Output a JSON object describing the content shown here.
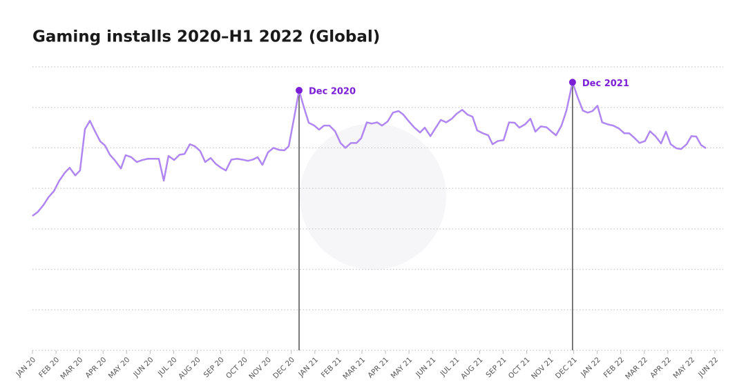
{
  "chart_data": {
    "type": "line",
    "title": "Gaming installs 2020–H1 2022 (Global)",
    "x": [
      0.0,
      0.23,
      0.47,
      0.68,
      0.91,
      1.14,
      1.38,
      1.58,
      1.82,
      2.02,
      2.23,
      2.44,
      2.64,
      2.88,
      3.08,
      3.29,
      3.49,
      3.76,
      3.96,
      4.2,
      4.43,
      4.67,
      4.9,
      5.14,
      5.37,
      5.58,
      5.78,
      6.02,
      6.25,
      6.46,
      6.69,
      6.9,
      7.13,
      7.34,
      7.57,
      7.78,
      8.01,
      8.22,
      8.45,
      8.69,
      8.92,
      9.16,
      9.36,
      9.57,
      9.77,
      10.01,
      10.24,
      10.48,
      10.71,
      10.89,
      11.12,
      11.33,
      11.54,
      11.74,
      11.98,
      12.18,
      12.39,
      12.62,
      12.86,
      13.09,
      13.3,
      13.53,
      13.77,
      13.97,
      14.21,
      14.41,
      14.65,
      14.85,
      15.09,
      15.32,
      15.56,
      15.76,
      16.0,
      16.23,
      16.47,
      16.67,
      16.91,
      17.14,
      17.35,
      17.58,
      17.82,
      18.02,
      18.26,
      18.49,
      18.7,
      18.9,
      19.14,
      19.37,
      19.55,
      19.78,
      20.02,
      20.25,
      20.49,
      20.69,
      20.93,
      21.16,
      21.37,
      21.6,
      21.84,
      22.04,
      22.25,
      22.48,
      22.69,
      22.95,
      23.16,
      23.39,
      23.6,
      23.8,
      24.01,
      24.21,
      24.45,
      24.68,
      24.92,
      25.15,
      25.36,
      25.59,
      25.8,
      26.03,
      26.24,
      26.47,
      26.71,
      26.92,
      27.12,
      27.36,
      27.56,
      27.8,
      28.0,
      28.21,
      28.41,
      28.62
    ],
    "series": [
      {
        "color": "#b086f2",
        "values": [
          3.32,
          3.42,
          3.59,
          3.78,
          3.93,
          4.19,
          4.39,
          4.51,
          4.32,
          4.44,
          5.46,
          5.67,
          5.43,
          5.16,
          5.06,
          4.83,
          4.7,
          4.49,
          4.82,
          4.77,
          4.65,
          4.7,
          4.73,
          4.73,
          4.73,
          4.19,
          4.8,
          4.7,
          4.83,
          4.85,
          5.09,
          5.04,
          4.92,
          4.65,
          4.75,
          4.61,
          4.51,
          4.44,
          4.71,
          4.73,
          4.71,
          4.68,
          4.71,
          4.77,
          4.58,
          4.89,
          5.0,
          4.95,
          4.94,
          5.04,
          5.75,
          6.42,
          5.99,
          5.62,
          5.55,
          5.45,
          5.55,
          5.55,
          5.41,
          5.12,
          5.0,
          5.12,
          5.12,
          5.24,
          5.63,
          5.6,
          5.63,
          5.55,
          5.65,
          5.87,
          5.91,
          5.82,
          5.65,
          5.5,
          5.38,
          5.5,
          5.29,
          5.5,
          5.69,
          5.63,
          5.72,
          5.84,
          5.94,
          5.82,
          5.77,
          5.43,
          5.36,
          5.31,
          5.09,
          5.17,
          5.19,
          5.63,
          5.62,
          5.5,
          5.58,
          5.72,
          5.4,
          5.53,
          5.51,
          5.41,
          5.31,
          5.55,
          5.92,
          6.62,
          6.26,
          5.92,
          5.87,
          5.91,
          6.04,
          5.63,
          5.58,
          5.55,
          5.48,
          5.36,
          5.36,
          5.24,
          5.12,
          5.17,
          5.41,
          5.29,
          5.11,
          5.4,
          5.09,
          4.99,
          4.97,
          5.09,
          5.29,
          5.28,
          5.07,
          4.99
        ]
      }
    ],
    "annotations": [
      {
        "text": "Dec 2020",
        "x": 11.33,
        "y": 6.42,
        "color": "#7b1fd6"
      },
      {
        "text": "Dec 2021",
        "x": 22.95,
        "y": 6.62,
        "color": "#7b1fd6"
      }
    ],
    "xlim": [
      0,
      29
    ],
    "xticks": [
      {
        "value": 0,
        "label": "JAN 20"
      },
      {
        "value": 1,
        "label": "FEB 20"
      },
      {
        "value": 2,
        "label": "MAR 20"
      },
      {
        "value": 3,
        "label": "APR 20"
      },
      {
        "value": 4,
        "label": "MAY 20"
      },
      {
        "value": 5,
        "label": "JUN 20"
      },
      {
        "value": 6,
        "label": "JUL 20"
      },
      {
        "value": 7,
        "label": "AUG 20"
      },
      {
        "value": 8,
        "label": "SEP 20"
      },
      {
        "value": 9,
        "label": "OCT 20"
      },
      {
        "value": 10,
        "label": "NOV 20"
      },
      {
        "value": 11,
        "label": "DEC 20"
      },
      {
        "value": 12,
        "label": "JAN 21"
      },
      {
        "value": 13,
        "label": "FEB 21"
      },
      {
        "value": 14,
        "label": "MAR 21"
      },
      {
        "value": 15,
        "label": "APR 21"
      },
      {
        "value": 16,
        "label": "MAY 21"
      },
      {
        "value": 17,
        "label": "JUN 21"
      },
      {
        "value": 18,
        "label": "JUL 21"
      },
      {
        "value": 19,
        "label": "AUG 21"
      },
      {
        "value": 20,
        "label": "SEP 21"
      },
      {
        "value": 21,
        "label": "OCT 21"
      },
      {
        "value": 22,
        "label": "NOV 21"
      },
      {
        "value": 23,
        "label": "DEC 21"
      },
      {
        "value": 24,
        "label": "JAN 22"
      },
      {
        "value": 25,
        "label": "FEB 22"
      },
      {
        "value": 26,
        "label": "MAR 22"
      },
      {
        "value": 27,
        "label": "APR 22"
      },
      {
        "value": 28,
        "label": "MAY 22"
      },
      {
        "value": 29,
        "label": "JUN 22"
      }
    ],
    "ylim": [
      0,
      7
    ],
    "yticks": [
      0,
      1,
      2,
      3,
      4,
      5,
      6,
      7
    ],
    "show_ytick_labels": false,
    "grid": true
  }
}
